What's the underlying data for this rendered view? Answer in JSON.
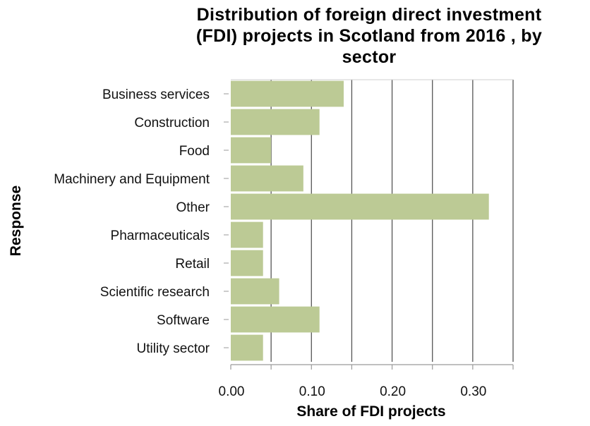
{
  "chart_data": {
    "type": "bar",
    "orientation": "horizontal",
    "title_lines": [
      "Distribution of foreign direct investment",
      "(FDI) projects in Scotland from 2016 , by",
      "sector"
    ],
    "xlabel": "Share of FDI projects",
    "ylabel": "Response",
    "categories": [
      "Business services",
      "Construction",
      "Food",
      "Machinery and Equipment",
      "Other",
      "Pharmaceuticals",
      "Retail",
      "Scientific research",
      "Software",
      "Utility sector"
    ],
    "values": [
      0.14,
      0.11,
      0.05,
      0.09,
      0.32,
      0.04,
      0.04,
      0.06,
      0.11,
      0.04
    ],
    "xlim": [
      0,
      0.35
    ],
    "xticks": [
      0,
      0.1,
      0.2,
      0.3
    ],
    "xtick_labels": [
      "0.00",
      "0.10",
      "0.20",
      "0.30"
    ],
    "grid": "vertical",
    "legend": "none",
    "bar_color": "#bcca95",
    "grid_color": "#555555",
    "axis_color": "#9a9a9a"
  }
}
